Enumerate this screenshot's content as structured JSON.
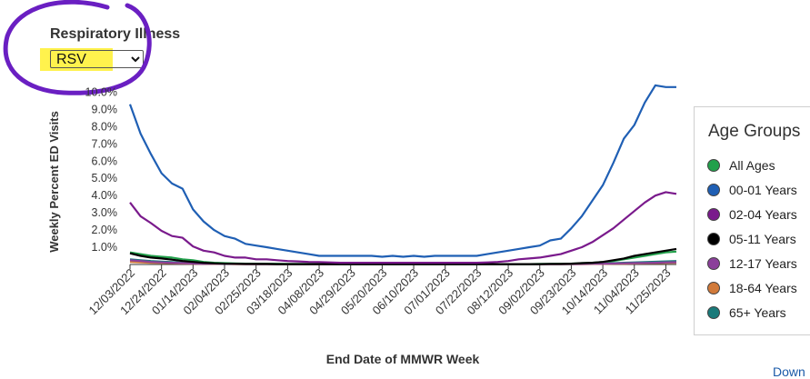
{
  "control": {
    "label": "Respiratory Illness",
    "selected": "RSV",
    "highlight_color": "#fff24d",
    "circle_color": "#6a1fc2"
  },
  "chart_data": {
    "type": "line",
    "ylabel": "Weekly Percent ED Visits",
    "xlabel": "End Date of MMWR Week",
    "yticks": [
      "1.0%",
      "2.0%",
      "3.0%",
      "4.0%",
      "5.0%",
      "6.0%",
      "7.0%",
      "8.0%",
      "9.0%",
      "10.0%"
    ],
    "ylim": [
      0,
      10.5
    ],
    "x_tick_labels": [
      "12/03/2022",
      "12/24/2022",
      "01/14/2023",
      "02/04/2023",
      "02/25/2023",
      "03/18/2023",
      "04/08/2023",
      "04/29/2023",
      "05/20/2023",
      "06/10/2023",
      "07/01/2023",
      "07/22/2023",
      "08/12/2023",
      "09/02/2023",
      "09/23/2023",
      "10/14/2023",
      "11/04/2023",
      "11/25/2023"
    ],
    "x_tick_every": 3,
    "n_weeks": 53,
    "legend_title": "Age Groups",
    "legend_position": "right",
    "series": [
      {
        "name": "All Ages",
        "color": "#22a04b",
        "values": [
          0.7,
          0.6,
          0.5,
          0.45,
          0.4,
          0.3,
          0.25,
          0.15,
          0.1,
          0.08,
          0.06,
          0.05,
          0.05,
          0.04,
          0.04,
          0.03,
          0.03,
          0.03,
          0.03,
          0.03,
          0.02,
          0.02,
          0.02,
          0.02,
          0.02,
          0.02,
          0.02,
          0.02,
          0.02,
          0.02,
          0.02,
          0.02,
          0.02,
          0.02,
          0.02,
          0.02,
          0.02,
          0.02,
          0.02,
          0.03,
          0.03,
          0.04,
          0.05,
          0.08,
          0.1,
          0.15,
          0.2,
          0.3,
          0.4,
          0.5,
          0.6,
          0.7,
          0.75
        ]
      },
      {
        "name": "00-01 Years",
        "color": "#1f5fb4",
        "values": [
          9.3,
          7.6,
          6.4,
          5.3,
          4.7,
          4.4,
          3.2,
          2.5,
          2.0,
          1.65,
          1.5,
          1.2,
          1.1,
          1.0,
          0.9,
          0.8,
          0.7,
          0.6,
          0.5,
          0.5,
          0.5,
          0.5,
          0.5,
          0.5,
          0.45,
          0.5,
          0.45,
          0.5,
          0.45,
          0.5,
          0.5,
          0.5,
          0.5,
          0.5,
          0.6,
          0.7,
          0.8,
          0.9,
          1.0,
          1.1,
          1.4,
          1.5,
          2.1,
          2.8,
          3.7,
          4.6,
          5.9,
          7.3,
          8.1,
          9.4,
          10.4,
          10.3,
          10.3
        ]
      },
      {
        "name": "02-04 Years",
        "color": "#7a1a8c",
        "values": [
          3.6,
          2.8,
          2.4,
          1.95,
          1.65,
          1.55,
          1.05,
          0.8,
          0.7,
          0.5,
          0.4,
          0.4,
          0.3,
          0.3,
          0.25,
          0.2,
          0.18,
          0.15,
          0.14,
          0.12,
          0.1,
          0.1,
          0.1,
          0.1,
          0.1,
          0.1,
          0.1,
          0.1,
          0.1,
          0.1,
          0.1,
          0.1,
          0.1,
          0.1,
          0.12,
          0.15,
          0.2,
          0.3,
          0.35,
          0.4,
          0.5,
          0.6,
          0.8,
          1.0,
          1.3,
          1.7,
          2.1,
          2.6,
          3.1,
          3.6,
          4.0,
          4.2,
          4.1
        ]
      },
      {
        "name": "05-11 Years",
        "color": "#000000",
        "values": [
          0.65,
          0.5,
          0.4,
          0.35,
          0.28,
          0.2,
          0.15,
          0.1,
          0.07,
          0.05,
          0.04,
          0.03,
          0.03,
          0.03,
          0.02,
          0.02,
          0.02,
          0.02,
          0.02,
          0.02,
          0.02,
          0.02,
          0.02,
          0.02,
          0.02,
          0.02,
          0.02,
          0.02,
          0.02,
          0.02,
          0.02,
          0.02,
          0.02,
          0.02,
          0.02,
          0.02,
          0.02,
          0.02,
          0.02,
          0.02,
          0.03,
          0.03,
          0.05,
          0.08,
          0.1,
          0.15,
          0.25,
          0.35,
          0.5,
          0.6,
          0.7,
          0.8,
          0.9
        ]
      },
      {
        "name": "12-17 Years",
        "color": "#8b3f9a",
        "values": [
          0.25,
          0.2,
          0.15,
          0.12,
          0.1,
          0.08,
          0.06,
          0.05,
          0.04,
          0.03,
          0.03,
          0.02,
          0.02,
          0.02,
          0.02,
          0.02,
          0.02,
          0.02,
          0.02,
          0.02,
          0.02,
          0.02,
          0.02,
          0.02,
          0.02,
          0.02,
          0.02,
          0.02,
          0.02,
          0.02,
          0.02,
          0.02,
          0.02,
          0.02,
          0.02,
          0.02,
          0.02,
          0.02,
          0.02,
          0.02,
          0.02,
          0.02,
          0.02,
          0.03,
          0.04,
          0.05,
          0.06,
          0.07,
          0.08,
          0.09,
          0.1,
          0.12,
          0.13
        ]
      },
      {
        "name": "18-64 Years",
        "color": "#d17a3a",
        "values": [
          0.15,
          0.12,
          0.1,
          0.09,
          0.08,
          0.06,
          0.05,
          0.04,
          0.03,
          0.03,
          0.02,
          0.02,
          0.02,
          0.02,
          0.02,
          0.02,
          0.02,
          0.02,
          0.02,
          0.02,
          0.02,
          0.02,
          0.02,
          0.02,
          0.02,
          0.02,
          0.02,
          0.02,
          0.02,
          0.02,
          0.02,
          0.02,
          0.02,
          0.02,
          0.02,
          0.02,
          0.02,
          0.02,
          0.02,
          0.02,
          0.02,
          0.02,
          0.02,
          0.02,
          0.03,
          0.03,
          0.04,
          0.05,
          0.06,
          0.07,
          0.08,
          0.09,
          0.1
        ]
      },
      {
        "name": "65+ Years",
        "color": "#1a7a7a",
        "values": [
          0.3,
          0.25,
          0.2,
          0.17,
          0.14,
          0.1,
          0.08,
          0.06,
          0.05,
          0.04,
          0.03,
          0.03,
          0.02,
          0.02,
          0.02,
          0.02,
          0.02,
          0.02,
          0.02,
          0.02,
          0.02,
          0.02,
          0.02,
          0.02,
          0.02,
          0.02,
          0.02,
          0.02,
          0.02,
          0.02,
          0.02,
          0.02,
          0.02,
          0.02,
          0.02,
          0.02,
          0.02,
          0.02,
          0.02,
          0.02,
          0.02,
          0.02,
          0.03,
          0.04,
          0.05,
          0.06,
          0.08,
          0.1,
          0.12,
          0.14,
          0.16,
          0.18,
          0.2
        ]
      }
    ]
  },
  "footer": {
    "link_text": "Down"
  }
}
